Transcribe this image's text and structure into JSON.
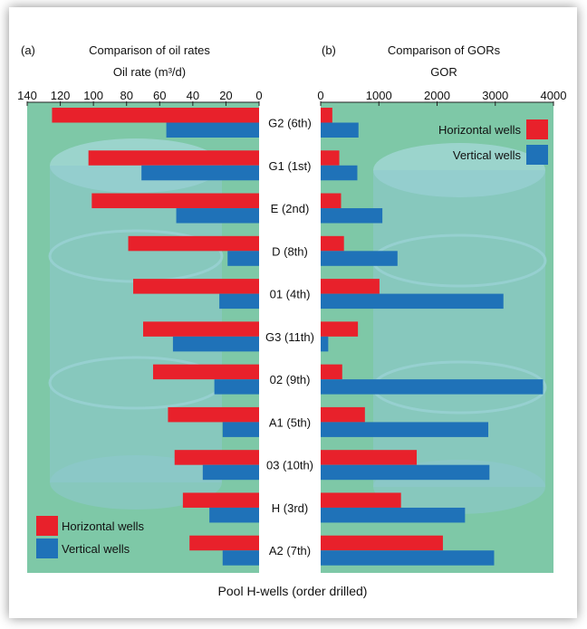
{
  "chart_data": [
    {
      "type": "bar",
      "orientation": "horizontal",
      "panel_label": "(a)",
      "title": "Comparison of oil rates",
      "xlabel": "Oil rate (m³/d)",
      "xlim": [
        0,
        140
      ],
      "xticks": [
        0,
        20,
        40,
        60,
        80,
        100,
        120,
        140
      ],
      "x_reversed": true,
      "categories": [
        "G2 (6th)",
        "G1 (1st)",
        "E (2nd)",
        "D (8th)",
        "01 (4th)",
        "G3 (11th)",
        "02 (9th)",
        "A1 (5th)",
        "03 (10th)",
        "H (3rd)",
        "A2 (7th)"
      ],
      "series": [
        {
          "name": "Horizontal wells",
          "color": "#e8212b",
          "values": [
            125,
            103,
            101,
            79,
            76,
            70,
            64,
            55,
            51,
            46,
            42
          ]
        },
        {
          "name": "Vertical wells",
          "color": "#1f72b8",
          "values": [
            56,
            71,
            50,
            19,
            24,
            52,
            27,
            22,
            34,
            30,
            22
          ]
        }
      ],
      "legend_position": "bottom-left"
    },
    {
      "type": "bar",
      "orientation": "horizontal",
      "panel_label": "(b)",
      "title": "Comparison of GORs",
      "xlabel": "GOR",
      "xlim": [
        0,
        4000
      ],
      "xticks": [
        0,
        1000,
        2000,
        3000,
        4000
      ],
      "categories": [
        "G2 (6th)",
        "G1 (1st)",
        "E (2nd)",
        "D (8th)",
        "01 (4th)",
        "G3 (11th)",
        "02 (9th)",
        "A1 (5th)",
        "03 (10th)",
        "H (3rd)",
        "A2 (7th)"
      ],
      "series": [
        {
          "name": "Horizontal wells",
          "color": "#e8212b",
          "values": [
            200,
            320,
            350,
            400,
            1010,
            640,
            370,
            760,
            1650,
            1380,
            2100
          ]
        },
        {
          "name": "Vertical wells",
          "color": "#1f72b8",
          "values": [
            650,
            630,
            1060,
            1320,
            3140,
            130,
            3820,
            2880,
            2900,
            2480,
            2980
          ]
        }
      ],
      "legend_position": "top-right"
    }
  ],
  "shared_xlabel": "Pool H-wells (order drilled)",
  "colors": {
    "plot_background": "#7ec8a7",
    "barrel": "#8ec9d0"
  }
}
